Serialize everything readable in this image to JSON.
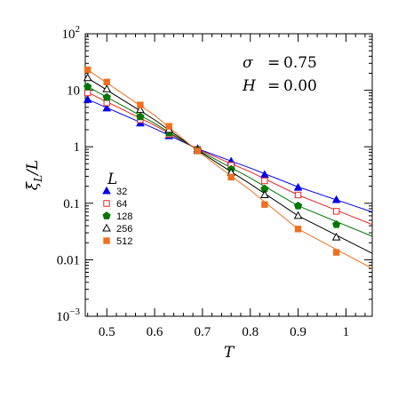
{
  "chart_data": {
    "type": "line",
    "x_label": "T",
    "y_label": {
      "main": "ξ",
      "sub": "L",
      "suffix": "/L"
    },
    "x_range": [
      0.455,
      1.055
    ],
    "y_range": [
      0.001,
      100
    ],
    "y_scale": "log",
    "x_ticks": [
      0.5,
      0.6,
      0.7,
      0.8,
      0.9,
      1.0
    ],
    "x_tick_labels": [
      "0.5",
      "0.6",
      "0.7",
      "0.8",
      "0.9",
      "1"
    ],
    "y_ticks": [
      0.001,
      0.01,
      0.1,
      1,
      10,
      100
    ],
    "y_tick_labels": [
      {
        "base": "10",
        "exp": "−3"
      },
      {
        "base": "0.01",
        "exp": ""
      },
      {
        "base": "0.1",
        "exp": ""
      },
      {
        "base": "1",
        "exp": ""
      },
      {
        "base": "10",
        "exp": ""
      },
      {
        "base": "10",
        "exp": "2"
      }
    ],
    "annotations": [
      {
        "symbol": "σ",
        "eq": "=",
        "value": "0.75"
      },
      {
        "symbol": "H",
        "eq": "=",
        "value": "0.00"
      }
    ],
    "legend": {
      "title": "L",
      "position": "left-middle"
    },
    "x": [
      0.46,
      0.5,
      0.57,
      0.63,
      0.69,
      0.76,
      0.83,
      0.9,
      0.98
    ],
    "series": [
      {
        "name": "32",
        "color": "#0000ee",
        "marker": "triangle-filled",
        "values": [
          6.8,
          4.8,
          2.6,
          1.55,
          0.92,
          0.55,
          0.32,
          0.19,
          0.115
        ],
        "fit": [
          [
            0.455,
            7.2
          ],
          [
            0.6,
            2.1
          ],
          [
            0.69,
            0.92
          ],
          [
            0.8,
            0.42
          ],
          [
            0.9,
            0.195
          ],
          [
            1.055,
            0.07
          ]
        ]
      },
      {
        "name": "64",
        "color": "#ee2222",
        "marker": "square-open",
        "values": [
          9.0,
          6.0,
          3.0,
          1.65,
          0.9,
          0.47,
          0.25,
          0.14,
          0.072
        ],
        "fit": [
          [
            0.455,
            9.6
          ],
          [
            0.6,
            2.4
          ],
          [
            0.69,
            0.9
          ],
          [
            0.8,
            0.36
          ],
          [
            0.9,
            0.14
          ],
          [
            1.055,
            0.042
          ]
        ]
      },
      {
        "name": "128",
        "color": "#007700",
        "marker": "pentagon-filled",
        "values": [
          11.5,
          7.5,
          3.4,
          1.75,
          0.88,
          0.4,
          0.18,
          0.09,
          0.042
        ],
        "fit": [
          [
            0.455,
            12.2
          ],
          [
            0.6,
            2.6
          ],
          [
            0.69,
            0.88
          ],
          [
            0.8,
            0.28
          ],
          [
            0.9,
            0.09
          ],
          [
            1.055,
            0.026
          ]
        ]
      },
      {
        "name": "256",
        "color": "#000000",
        "marker": "triangle-open",
        "values": [
          16.5,
          10.5,
          4.5,
          2.0,
          0.86,
          0.35,
          0.14,
          0.06,
          0.025
        ],
        "fit": [
          [
            0.455,
            17.5
          ],
          [
            0.6,
            3.0
          ],
          [
            0.69,
            0.86
          ],
          [
            0.8,
            0.22
          ],
          [
            0.9,
            0.06
          ],
          [
            1.055,
            0.013
          ]
        ]
      },
      {
        "name": "512",
        "color": "#f07020",
        "marker": "square-filled",
        "values": [
          23.0,
          14.0,
          5.5,
          2.3,
          0.84,
          0.29,
          0.095,
          0.035,
          0.0135
        ],
        "fit": [
          [
            0.455,
            24.5
          ],
          [
            0.6,
            3.6
          ],
          [
            0.69,
            0.84
          ],
          [
            0.8,
            0.17
          ],
          [
            0.9,
            0.035
          ],
          [
            1.055,
            0.007
          ]
        ]
      }
    ]
  }
}
